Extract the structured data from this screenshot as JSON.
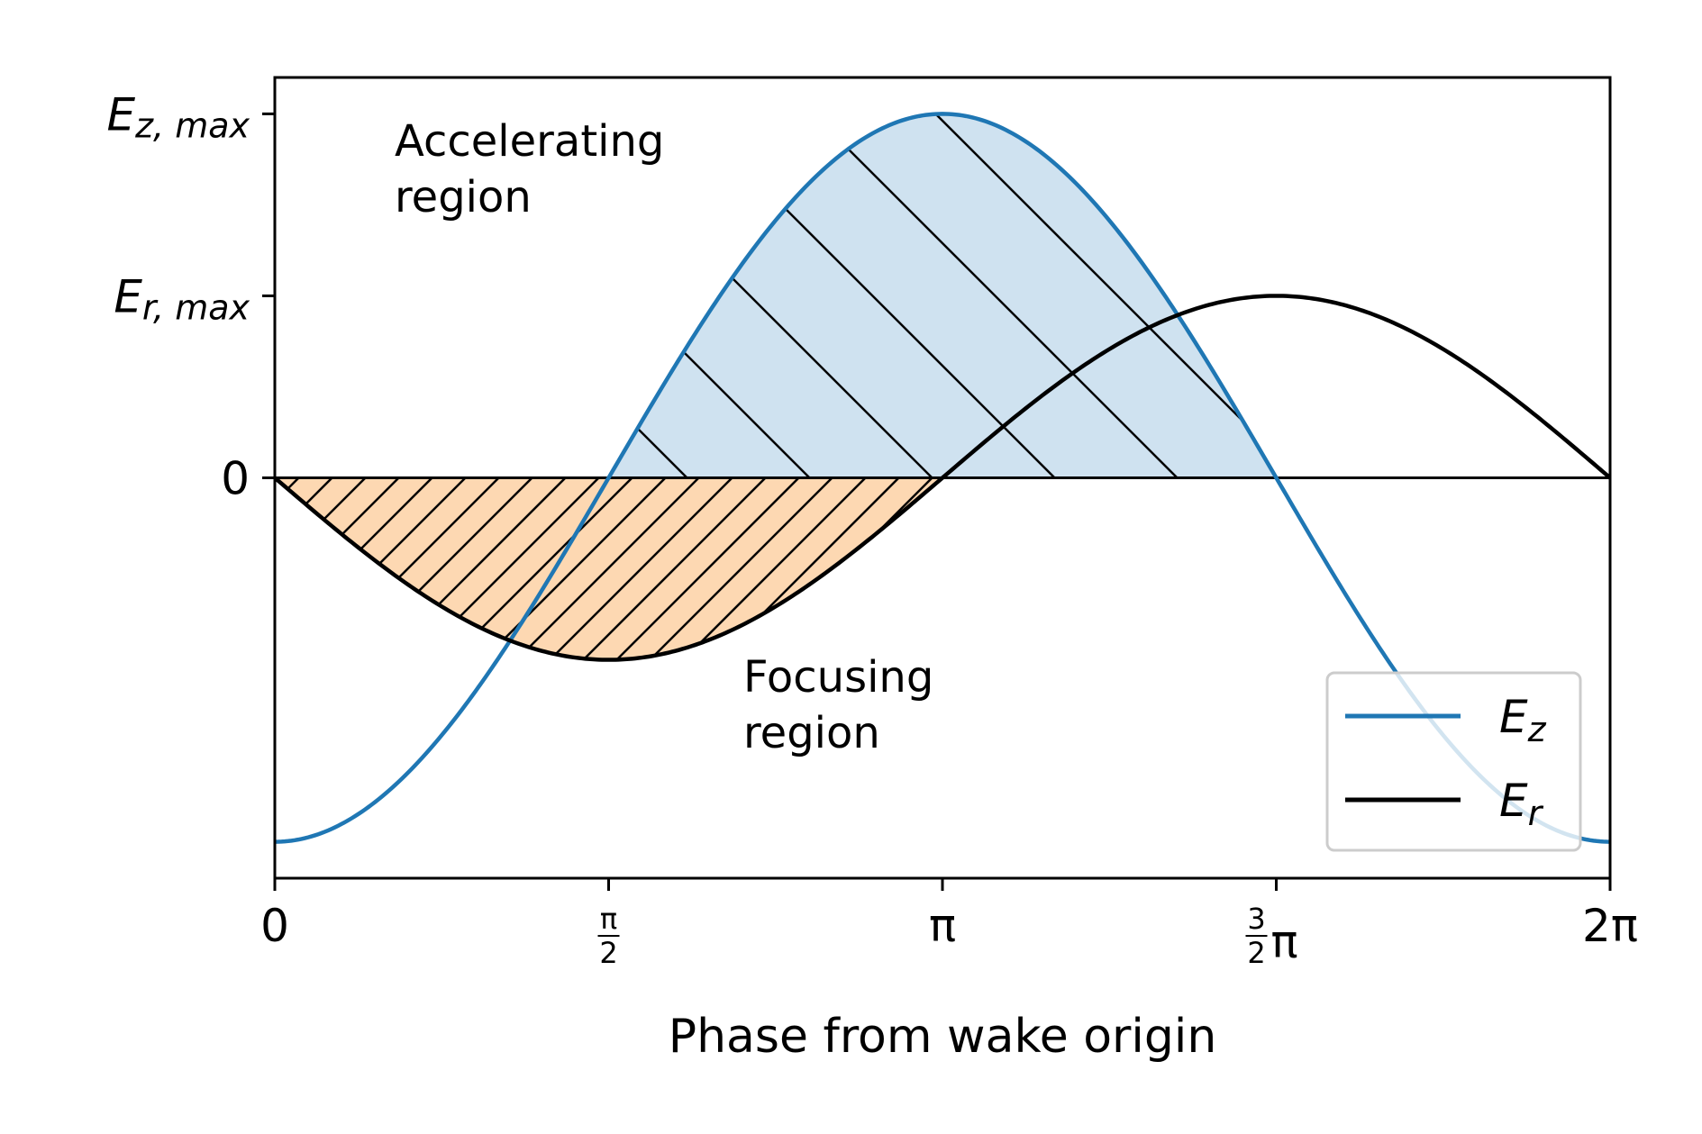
{
  "chart_data": {
    "type": "line",
    "xlabel": "Phase from wake origin",
    "xlim": [
      0,
      6.283185307
    ],
    "ylim": [
      -1.1,
      1.1
    ],
    "x_ticks": [
      {
        "value": 0,
        "kind": "plain",
        "text": "0"
      },
      {
        "value": 1.5707963,
        "kind": "frac",
        "num": "π",
        "den": "2",
        "suffix": ""
      },
      {
        "value": 3.1415927,
        "kind": "plain",
        "text": "π"
      },
      {
        "value": 4.712389,
        "kind": "frac",
        "num": "3",
        "den": "2",
        "suffix": "π"
      },
      {
        "value": 6.2831853,
        "kind": "plain",
        "text": "2π"
      }
    ],
    "y_ticks": [
      {
        "value": 1.0,
        "main": "E",
        "sub": "z",
        "rest": ", max"
      },
      {
        "value": 0.5,
        "main": "E",
        "sub": "r",
        "rest": ", max"
      },
      {
        "value": 0.0,
        "main": "0",
        "sub": "",
        "rest": ""
      }
    ],
    "series": [
      {
        "name": "E",
        "sub": "z",
        "formula": "-cos(x)",
        "amplitude": 1.0,
        "color": "#1f77b4"
      },
      {
        "name": "E",
        "sub": "r",
        "formula": "-0.5*sin(x)",
        "amplitude": 0.5,
        "color": "#000000"
      }
    ],
    "regions": [
      {
        "label": [
          "Accelerating",
          "region"
        ],
        "x_range": [
          1.5707963,
          4.712389
        ],
        "fill": "#cfe2f0",
        "hatch": "\\"
      },
      {
        "label": [
          "Focusing",
          "region"
        ],
        "x_range": [
          0,
          3.1415927
        ],
        "fill": "#fdd8b2",
        "hatch": "/"
      }
    ],
    "zero_line": true,
    "grid": false,
    "legend_position": "lower-right"
  }
}
